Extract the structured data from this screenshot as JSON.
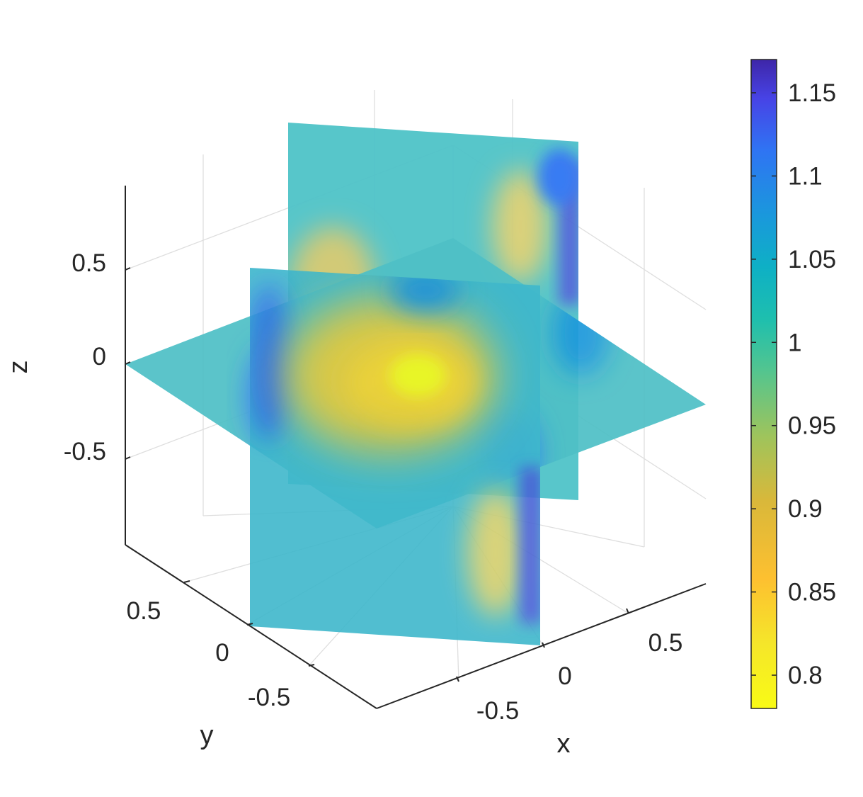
{
  "chart_data": {
    "type": "heatmap",
    "subtype": "3d-orthogonal-slices",
    "title": "",
    "xlabel": "x",
    "ylabel": "y",
    "zlabel": "z",
    "x_ticks": [
      "-0.5",
      "0",
      "0.5"
    ],
    "y_ticks": [
      "0.5",
      "0",
      "-0.5"
    ],
    "z_ticks": [
      "0.5",
      "0",
      "-0.5"
    ],
    "xlim": [
      -0.9,
      0.9
    ],
    "ylim": [
      -0.9,
      0.9
    ],
    "zlim": [
      -0.9,
      0.9
    ],
    "slices": [
      {
        "plane": "x",
        "value": 0
      },
      {
        "plane": "y",
        "value": 0
      },
      {
        "plane": "z",
        "value": 0
      }
    ],
    "colormap": "parula",
    "colormap_stops": [
      "#3e26a8",
      "#4743e6",
      "#2f74f3",
      "#1a98dc",
      "#0eb0c5",
      "#1ebfae",
      "#53c58f",
      "#9ec45c",
      "#d9b83a",
      "#fdc030",
      "#f5e62a",
      "#f9fb15"
    ],
    "color_range": [
      0.78,
      1.17
    ],
    "colorbar_ticks": [
      "1.15",
      "1.1",
      "1.05",
      "1",
      "0.95",
      "0.9",
      "0.85",
      "0.8"
    ],
    "colorbar_tick_values": [
      1.15,
      1.1,
      1.05,
      1.0,
      0.95,
      0.9,
      0.85,
      0.8
    ],
    "field_min": {
      "value": 0.78,
      "location": [
        0,
        0,
        0
      ]
    },
    "field_max": {
      "value": 1.17,
      "location": "slice edges"
    },
    "grid": true
  }
}
